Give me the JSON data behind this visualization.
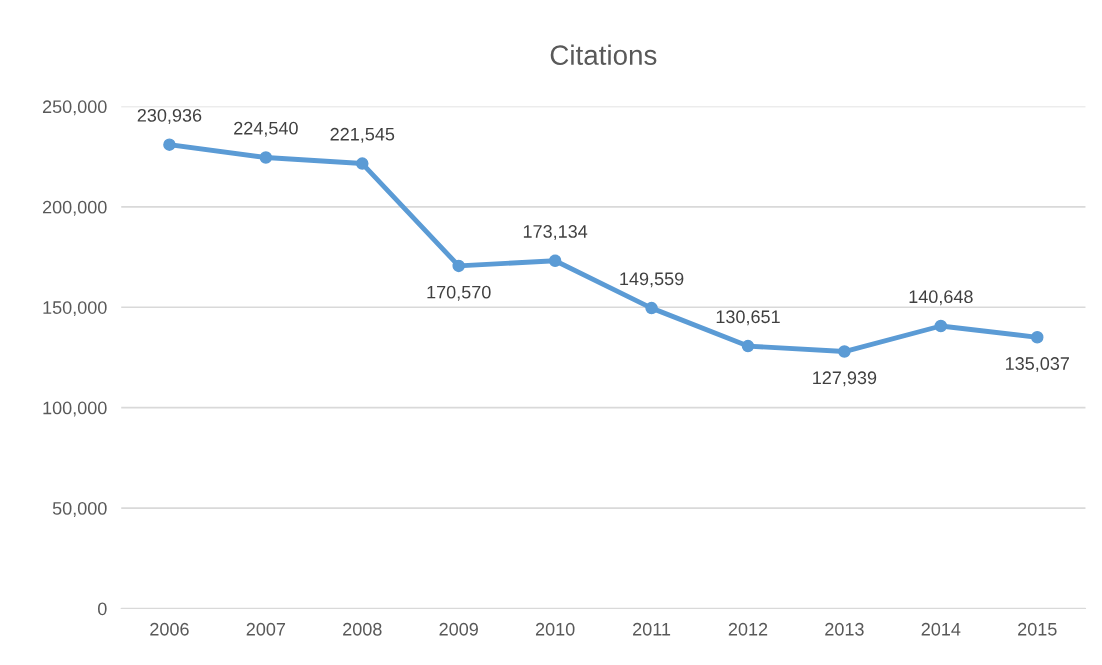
{
  "chart_data": {
    "type": "line",
    "title": "Citations",
    "categories": [
      "2006",
      "2007",
      "2008",
      "2009",
      "2010",
      "2011",
      "2012",
      "2013",
      "2014",
      "2015"
    ],
    "series": [
      {
        "color": "#5b9bd5",
        "values": [
          230936,
          224540,
          221545,
          170570,
          173134,
          149559,
          130651,
          127939,
          140648,
          135037
        ],
        "value_labels": [
          "230,936",
          "224,540",
          "221,545",
          "170,570",
          "173,134",
          "149,559",
          "130,651",
          "127,939",
          "140,648",
          "135,037"
        ]
      }
    ],
    "ylim": [
      0,
      250000
    ],
    "yticks": [
      {
        "value": 0,
        "label": "0"
      },
      {
        "value": 50000,
        "label": "50,000"
      },
      {
        "value": 100000,
        "label": "100,000"
      },
      {
        "value": 150000,
        "label": "150,000"
      },
      {
        "value": 200000,
        "label": "200,000"
      },
      {
        "value": 250000,
        "label": "250,000"
      }
    ],
    "grid": "y",
    "marker": "circle",
    "line_style": "solid",
    "legend": false
  }
}
